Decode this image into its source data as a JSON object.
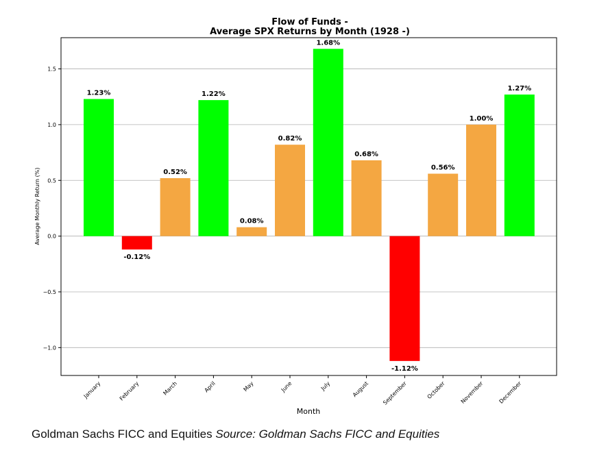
{
  "chart_data": {
    "type": "bar",
    "title_line1": "Flow of Funds -",
    "title_line2": "Average SPX Returns by Month (1928 -)",
    "xlabel": "Month",
    "ylabel": "Average Monthly Return (%)",
    "ylim": [
      -1.25,
      1.78
    ],
    "yticks": [
      -1.0,
      -0.5,
      0.0,
      0.5,
      1.0,
      1.5
    ],
    "ytick_labels": [
      "−1.0",
      "−0.5",
      "0.0",
      "0.5",
      "1.0",
      "1.5"
    ],
    "grid": true,
    "categories": [
      "January",
      "February",
      "March",
      "April",
      "May",
      "June",
      "July",
      "August",
      "September",
      "October",
      "November",
      "December"
    ],
    "values": [
      1.23,
      -0.12,
      0.52,
      1.22,
      0.08,
      0.82,
      1.68,
      0.68,
      -1.12,
      0.56,
      1.0,
      1.27
    ],
    "value_labels": [
      "1.23%",
      "-0.12%",
      "0.52%",
      "1.22%",
      "0.08%",
      "0.82%",
      "1.68%",
      "0.68%",
      "-1.12%",
      "0.56%",
      "1.00%",
      "1.27%"
    ],
    "bar_colors": [
      "#00ff00",
      "#ff0000",
      "#f4a742",
      "#00ff00",
      "#f4a742",
      "#f4a742",
      "#00ff00",
      "#f4a742",
      "#ff0000",
      "#f4a742",
      "#f4a742",
      "#00ff00"
    ]
  },
  "caption": {
    "credit": "Goldman Sachs FICC and Equities",
    "source_label": "Source: Goldman Sachs FICC and Equities"
  }
}
